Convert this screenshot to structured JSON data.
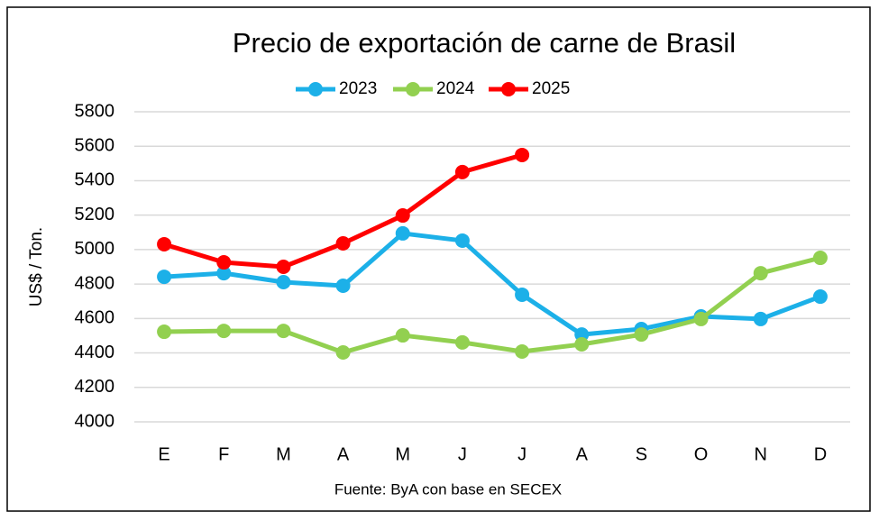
{
  "chart_data": {
    "type": "line",
    "title": "Precio de exportación de carne de Brasil",
    "y_label": "US$ / Ton.",
    "source": "Fuente: ByA con base en SECEX",
    "categories": [
      "E",
      "F",
      "M",
      "A",
      "M",
      "J",
      "J",
      "A",
      "S",
      "O",
      "N",
      "D"
    ],
    "series": [
      {
        "name": "2023",
        "color": "#1cb0e8",
        "values": [
          4842,
          4863,
          4811,
          4790,
          5094,
          5052,
          4738,
          4507,
          4539,
          4612,
          4597,
          4727
        ]
      },
      {
        "name": "2024",
        "color": "#92d050",
        "values": [
          4523,
          4528,
          4528,
          4403,
          4502,
          4461,
          4408,
          4450,
          4507,
          4597,
          4863,
          4952
        ]
      },
      {
        "name": "2025",
        "color": "#ff0000",
        "values": [
          5031,
          4926,
          4900,
          5036,
          5198,
          5450,
          5549,
          null,
          null,
          null,
          null,
          null
        ]
      }
    ],
    "ylim": [
      4000,
      5800
    ],
    "yticks": [
      4000,
      4200,
      4400,
      4600,
      4800,
      5000,
      5200,
      5400,
      5600,
      5800
    ],
    "grid": true,
    "legend": "top"
  }
}
